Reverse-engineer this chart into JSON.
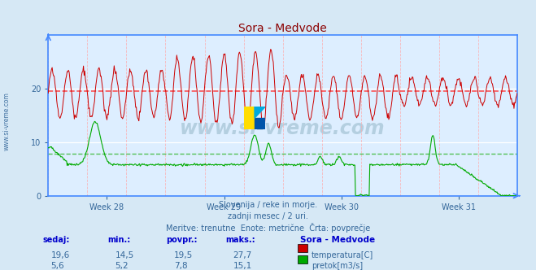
{
  "title": "Sora - Medvode",
  "title_color": "#8b0000",
  "bg_color": "#d6e8f5",
  "plot_bg_color": "#ddeeff",
  "grid_color": "#ffffff",
  "x_labels": [
    "Week 28",
    "Week 29",
    "Week 30",
    "Week 31"
  ],
  "temp_avg": 19.5,
  "temp_min": 14.5,
  "temp_max": 27.7,
  "temp_current": 19.6,
  "flow_avg": 7.8,
  "flow_min": 5.2,
  "flow_max": 15.1,
  "flow_current": 5.6,
  "temp_color": "#cc0000",
  "flow_color": "#00aa00",
  "avg_temp_line_color": "#ff4444",
  "avg_flow_line_color": "#44bb44",
  "axis_color": "#4488ff",
  "tick_color": "#336699",
  "text_color": "#336699",
  "label_color": "#0000cc",
  "footer_line1": "Slovenija / reke in morje.",
  "footer_line2": "zadnji mesec / 2 uri.",
  "footer_line3": "Meritve: trenutne  Enote: metrične  Črta: povprečje",
  "stat_headers": [
    "sedaj:",
    "min.:",
    "povpr.:",
    "maks.:"
  ],
  "stat_temp": [
    "19,6",
    "14,5",
    "19,5",
    "27,7"
  ],
  "stat_flow": [
    "5,6",
    "5,2",
    "7,8",
    "15,1"
  ],
  "legend_title": "Sora - Medvode",
  "legend_temp": "temperatura[C]",
  "legend_flow": "pretok[m3/s]",
  "watermark": "www.si-vreme.com",
  "sidebar_text": "www.si-vreme.com",
  "sidebar_color": "#336699",
  "dpi": 100,
  "fig_width": 6.59,
  "fig_height": 3.32,
  "ylim": [
    0,
    30
  ]
}
